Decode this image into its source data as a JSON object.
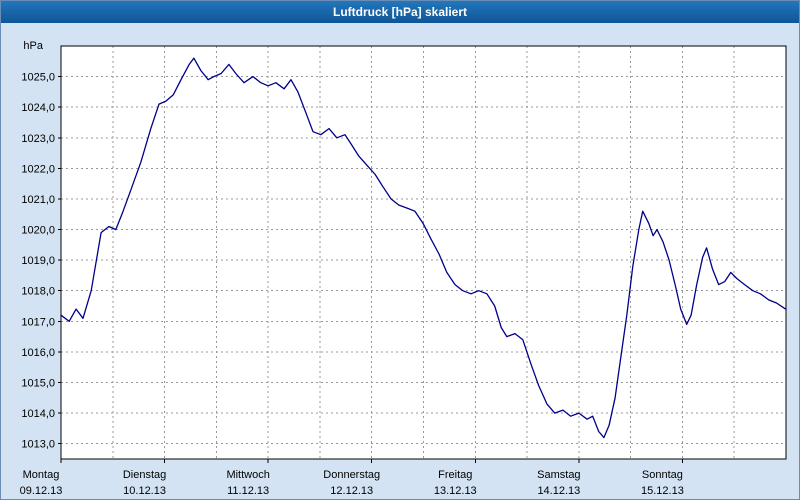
{
  "window": {
    "title": "Luftdruck [hPa] skaliert"
  },
  "colors": {
    "titlebar": "#1563a8",
    "page_bg": "#d3e3f3",
    "plot_bg": "#ffffff",
    "grid": "#999999",
    "border": "#000000",
    "text": "#000000",
    "line": "#00008b"
  },
  "chart_data": {
    "type": "line",
    "title": "Luftdruck [hPa] skaliert",
    "unit_label": "hPa",
    "ylim": [
      1012.5,
      1026.0
    ],
    "xlim_hours": [
      0,
      168
    ],
    "grid": {
      "h_step_hpa": 1,
      "v_step_hours": 12,
      "style": "dashed"
    },
    "y_ticks": [
      1013,
      1014,
      1015,
      1016,
      1017,
      1018,
      1019,
      1020,
      1021,
      1022,
      1023,
      1024,
      1025
    ],
    "y_tick_labels": [
      "1013,0",
      "1014,0",
      "1015,0",
      "1016,0",
      "1017,0",
      "1018,0",
      "1019,0",
      "1020,0",
      "1021,0",
      "1022,0",
      "1023,0",
      "1024,0",
      "1025,0"
    ],
    "x_ticks": [
      {
        "hour": 0,
        "day": "Montag",
        "date": "09.12.13"
      },
      {
        "hour": 24,
        "day": "Dienstag",
        "date": "10.12.13"
      },
      {
        "hour": 48,
        "day": "Mittwoch",
        "date": "11.12.13"
      },
      {
        "hour": 72,
        "day": "Donnerstag",
        "date": "12.12.13"
      },
      {
        "hour": 96,
        "day": "Freitag",
        "date": "13.12.13"
      },
      {
        "hour": 120,
        "day": "Samstag",
        "date": "14.12.13"
      },
      {
        "hour": 144,
        "day": "Sonntag",
        "date": "15.12.13"
      }
    ],
    "series": [
      {
        "name": "Luftdruck",
        "points": [
          [
            0,
            1017.2
          ],
          [
            1.9,
            1017.0
          ],
          [
            3.5,
            1017.4
          ],
          [
            5.1,
            1017.1
          ],
          [
            7,
            1018.0
          ],
          [
            9.3,
            1019.9
          ],
          [
            11.1,
            1020.1
          ],
          [
            12.7,
            1020.0
          ],
          [
            14.4,
            1020.6
          ],
          [
            16.2,
            1021.3
          ],
          [
            18.5,
            1022.2
          ],
          [
            20.8,
            1023.3
          ],
          [
            22.7,
            1024.1
          ],
          [
            24.3,
            1024.2
          ],
          [
            26,
            1024.4
          ],
          [
            27.8,
            1024.9
          ],
          [
            29.7,
            1025.4
          ],
          [
            30.8,
            1025.6
          ],
          [
            32.4,
            1025.2
          ],
          [
            34.1,
            1024.9
          ],
          [
            35.4,
            1025.0
          ],
          [
            37.1,
            1025.1
          ],
          [
            38.9,
            1025.4
          ],
          [
            40.5,
            1025.1
          ],
          [
            42.4,
            1024.8
          ],
          [
            44.5,
            1025.0
          ],
          [
            46.3,
            1024.8
          ],
          [
            48,
            1024.7
          ],
          [
            49.8,
            1024.8
          ],
          [
            51.7,
            1024.6
          ],
          [
            53.3,
            1024.9
          ],
          [
            54.9,
            1024.5
          ],
          [
            56.8,
            1023.8
          ],
          [
            58.4,
            1023.2
          ],
          [
            60.2,
            1023.1
          ],
          [
            62.1,
            1023.3
          ],
          [
            63.9,
            1023.0
          ],
          [
            65.8,
            1023.1
          ],
          [
            67.2,
            1022.8
          ],
          [
            69,
            1022.4
          ],
          [
            70.9,
            1022.1
          ],
          [
            72.8,
            1021.8
          ],
          [
            74.6,
            1021.4
          ],
          [
            76.5,
            1021.0
          ],
          [
            78.3,
            1020.8
          ],
          [
            80.2,
            1020.7
          ],
          [
            82,
            1020.6
          ],
          [
            83.9,
            1020.2
          ],
          [
            85.7,
            1019.7
          ],
          [
            87.6,
            1019.2
          ],
          [
            89.4,
            1018.6
          ],
          [
            91.3,
            1018.2
          ],
          [
            93.1,
            1018.0
          ],
          [
            95,
            1017.9
          ],
          [
            96.8,
            1018.0
          ],
          [
            98.7,
            1017.9
          ],
          [
            100.5,
            1017.5
          ],
          [
            102,
            1016.8
          ],
          [
            103.3,
            1016.5
          ],
          [
            105.2,
            1016.6
          ],
          [
            107,
            1016.4
          ],
          [
            108.9,
            1015.6
          ],
          [
            110.7,
            1014.9
          ],
          [
            112.6,
            1014.3
          ],
          [
            114.4,
            1014.0
          ],
          [
            116.3,
            1014.1
          ],
          [
            118.1,
            1013.9
          ],
          [
            120,
            1014.0
          ],
          [
            121.9,
            1013.8
          ],
          [
            123.2,
            1013.9
          ],
          [
            124.6,
            1013.4
          ],
          [
            125.8,
            1013.2
          ],
          [
            127,
            1013.6
          ],
          [
            128.4,
            1014.5
          ],
          [
            129.7,
            1015.8
          ],
          [
            131.1,
            1017.2
          ],
          [
            132.5,
            1018.8
          ],
          [
            133.9,
            1020.0
          ],
          [
            134.8,
            1020.6
          ],
          [
            136.2,
            1020.2
          ],
          [
            137.2,
            1019.8
          ],
          [
            138.1,
            1020.0
          ],
          [
            139.5,
            1019.6
          ],
          [
            140.9,
            1019.0
          ],
          [
            142.3,
            1018.2
          ],
          [
            143.6,
            1017.4
          ],
          [
            145,
            1016.9
          ],
          [
            146,
            1017.2
          ],
          [
            147.3,
            1018.2
          ],
          [
            148.7,
            1019.1
          ],
          [
            149.6,
            1019.4
          ],
          [
            151,
            1018.7
          ],
          [
            152.4,
            1018.2
          ],
          [
            153.8,
            1018.3
          ],
          [
            155.2,
            1018.6
          ],
          [
            156.6,
            1018.4
          ],
          [
            158.4,
            1018.2
          ],
          [
            160.3,
            1018.0
          ],
          [
            162.1,
            1017.9
          ],
          [
            164,
            1017.7
          ],
          [
            165.8,
            1017.6
          ],
          [
            167.9,
            1017.4
          ]
        ]
      }
    ]
  }
}
